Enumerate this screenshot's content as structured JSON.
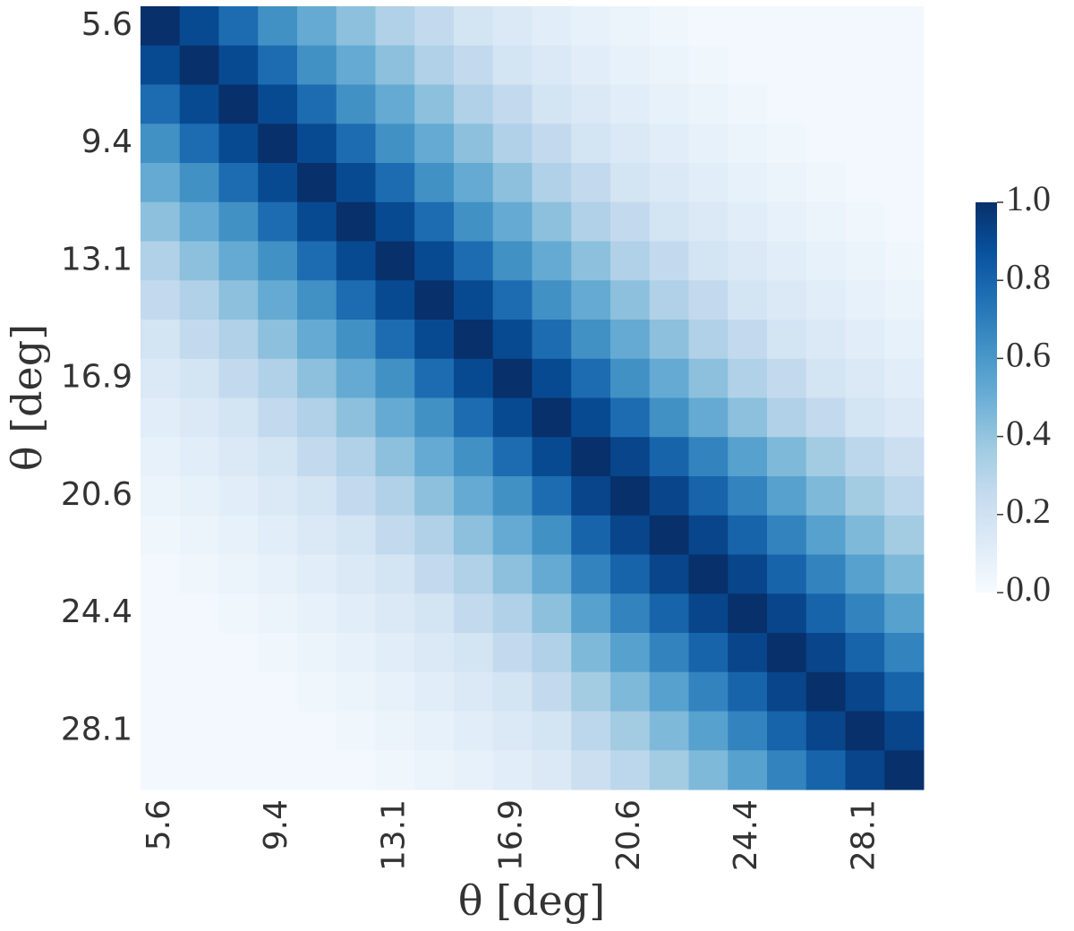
{
  "chart_data": {
    "type": "heatmap",
    "x": [
      "5.6",
      null,
      null,
      "9.4",
      null,
      null,
      "13.1",
      null,
      null,
      "16.9",
      null,
      null,
      "20.6",
      null,
      null,
      "24.4",
      null,
      null,
      "28.1",
      null
    ],
    "y": [
      "5.6",
      null,
      null,
      "9.4",
      null,
      null,
      "13.1",
      null,
      null,
      "16.9",
      null,
      null,
      "20.6",
      null,
      null,
      "24.4",
      null,
      null,
      "28.1",
      null
    ],
    "xlabel": "θ [deg]",
    "ylabel": "θ [deg]",
    "values": [
      [
        1,
        0.9,
        0.77,
        0.63,
        0.52,
        0.42,
        0.32,
        0.26,
        0.18,
        0.14,
        0.11,
        0.08,
        0.06,
        0.04,
        0.02,
        0.02,
        0.02,
        0.02,
        0.02,
        0.02
      ],
      [
        0.9,
        1,
        0.9,
        0.77,
        0.63,
        0.52,
        0.42,
        0.32,
        0.26,
        0.18,
        0.14,
        0.11,
        0.08,
        0.06,
        0.04,
        0.02,
        0.02,
        0.02,
        0.02,
        0.02
      ],
      [
        0.77,
        0.9,
        1,
        0.9,
        0.77,
        0.63,
        0.52,
        0.42,
        0.32,
        0.26,
        0.18,
        0.14,
        0.11,
        0.08,
        0.06,
        0.04,
        0.02,
        0.02,
        0.02,
        0.02
      ],
      [
        0.63,
        0.77,
        0.9,
        1,
        0.9,
        0.77,
        0.63,
        0.52,
        0.42,
        0.32,
        0.26,
        0.18,
        0.14,
        0.11,
        0.08,
        0.06,
        0.04,
        0.02,
        0.02,
        0.02
      ],
      [
        0.52,
        0.63,
        0.77,
        0.9,
        1,
        0.9,
        0.77,
        0.63,
        0.52,
        0.42,
        0.32,
        0.26,
        0.18,
        0.14,
        0.11,
        0.08,
        0.06,
        0.04,
        0.02,
        0.02
      ],
      [
        0.42,
        0.52,
        0.63,
        0.77,
        0.9,
        1,
        0.9,
        0.77,
        0.63,
        0.52,
        0.42,
        0.32,
        0.26,
        0.18,
        0.14,
        0.11,
        0.08,
        0.06,
        0.04,
        0.02
      ],
      [
        0.32,
        0.42,
        0.52,
        0.63,
        0.77,
        0.9,
        1,
        0.9,
        0.77,
        0.63,
        0.52,
        0.42,
        0.32,
        0.26,
        0.18,
        0.14,
        0.11,
        0.08,
        0.06,
        0.04
      ],
      [
        0.26,
        0.32,
        0.42,
        0.52,
        0.63,
        0.77,
        0.9,
        1,
        0.9,
        0.77,
        0.63,
        0.52,
        0.42,
        0.32,
        0.26,
        0.18,
        0.14,
        0.11,
        0.08,
        0.06
      ],
      [
        0.18,
        0.26,
        0.32,
        0.42,
        0.52,
        0.63,
        0.77,
        0.9,
        1,
        0.9,
        0.77,
        0.63,
        0.52,
        0.42,
        0.32,
        0.26,
        0.18,
        0.14,
        0.11,
        0.08
      ],
      [
        0.14,
        0.18,
        0.26,
        0.32,
        0.42,
        0.52,
        0.63,
        0.77,
        0.9,
        1,
        0.9,
        0.77,
        0.63,
        0.52,
        0.42,
        0.32,
        0.26,
        0.18,
        0.14,
        0.11
      ],
      [
        0.11,
        0.14,
        0.18,
        0.26,
        0.32,
        0.42,
        0.52,
        0.63,
        0.77,
        0.9,
        1,
        0.9,
        0.77,
        0.63,
        0.52,
        0.42,
        0.32,
        0.26,
        0.18,
        0.14
      ],
      [
        0.08,
        0.11,
        0.14,
        0.18,
        0.26,
        0.32,
        0.42,
        0.52,
        0.63,
        0.77,
        0.9,
        1,
        0.92,
        0.8,
        0.68,
        0.56,
        0.45,
        0.36,
        0.28,
        0.22
      ],
      [
        0.06,
        0.08,
        0.11,
        0.14,
        0.18,
        0.26,
        0.32,
        0.42,
        0.52,
        0.63,
        0.77,
        0.92,
        1,
        0.92,
        0.8,
        0.68,
        0.56,
        0.45,
        0.36,
        0.28
      ],
      [
        0.04,
        0.06,
        0.08,
        0.11,
        0.14,
        0.18,
        0.26,
        0.32,
        0.42,
        0.52,
        0.63,
        0.8,
        0.92,
        1,
        0.92,
        0.8,
        0.68,
        0.56,
        0.45,
        0.36
      ],
      [
        0.02,
        0.04,
        0.06,
        0.08,
        0.11,
        0.14,
        0.18,
        0.26,
        0.32,
        0.42,
        0.52,
        0.68,
        0.8,
        0.92,
        1,
        0.92,
        0.8,
        0.68,
        0.56,
        0.45
      ],
      [
        0.02,
        0.02,
        0.04,
        0.06,
        0.08,
        0.11,
        0.14,
        0.18,
        0.26,
        0.32,
        0.42,
        0.56,
        0.68,
        0.8,
        0.92,
        1,
        0.92,
        0.8,
        0.68,
        0.56
      ],
      [
        0.02,
        0.02,
        0.02,
        0.04,
        0.06,
        0.08,
        0.11,
        0.14,
        0.18,
        0.26,
        0.32,
        0.45,
        0.56,
        0.68,
        0.8,
        0.92,
        1,
        0.92,
        0.8,
        0.68
      ],
      [
        0.02,
        0.02,
        0.02,
        0.02,
        0.04,
        0.06,
        0.08,
        0.11,
        0.14,
        0.18,
        0.26,
        0.36,
        0.45,
        0.56,
        0.68,
        0.8,
        0.92,
        1,
        0.92,
        0.8
      ],
      [
        0.02,
        0.02,
        0.02,
        0.02,
        0.02,
        0.04,
        0.06,
        0.08,
        0.11,
        0.14,
        0.18,
        0.28,
        0.36,
        0.45,
        0.56,
        0.68,
        0.8,
        0.92,
        1,
        0.92
      ],
      [
        0.02,
        0.02,
        0.02,
        0.02,
        0.02,
        0.02,
        0.04,
        0.06,
        0.08,
        0.11,
        0.14,
        0.22,
        0.28,
        0.36,
        0.45,
        0.56,
        0.68,
        0.8,
        0.92,
        1
      ]
    ],
    "colormap": [
      "#f7fbff",
      "#deebf7",
      "#c6dbef",
      "#9ecae1",
      "#6baed6",
      "#4292c6",
      "#2171b5",
      "#08519c",
      "#08306b"
    ],
    "clim": [
      0,
      1
    ],
    "cticks": [
      {
        "value": 0,
        "label": "0.0"
      },
      {
        "value": 0.2,
        "label": "0.2"
      },
      {
        "value": 0.4,
        "label": "0.4"
      },
      {
        "value": 0.6,
        "label": "0.6"
      },
      {
        "value": 0.8,
        "label": "0.8"
      },
      {
        "value": 1,
        "label": "1.0"
      }
    ]
  }
}
